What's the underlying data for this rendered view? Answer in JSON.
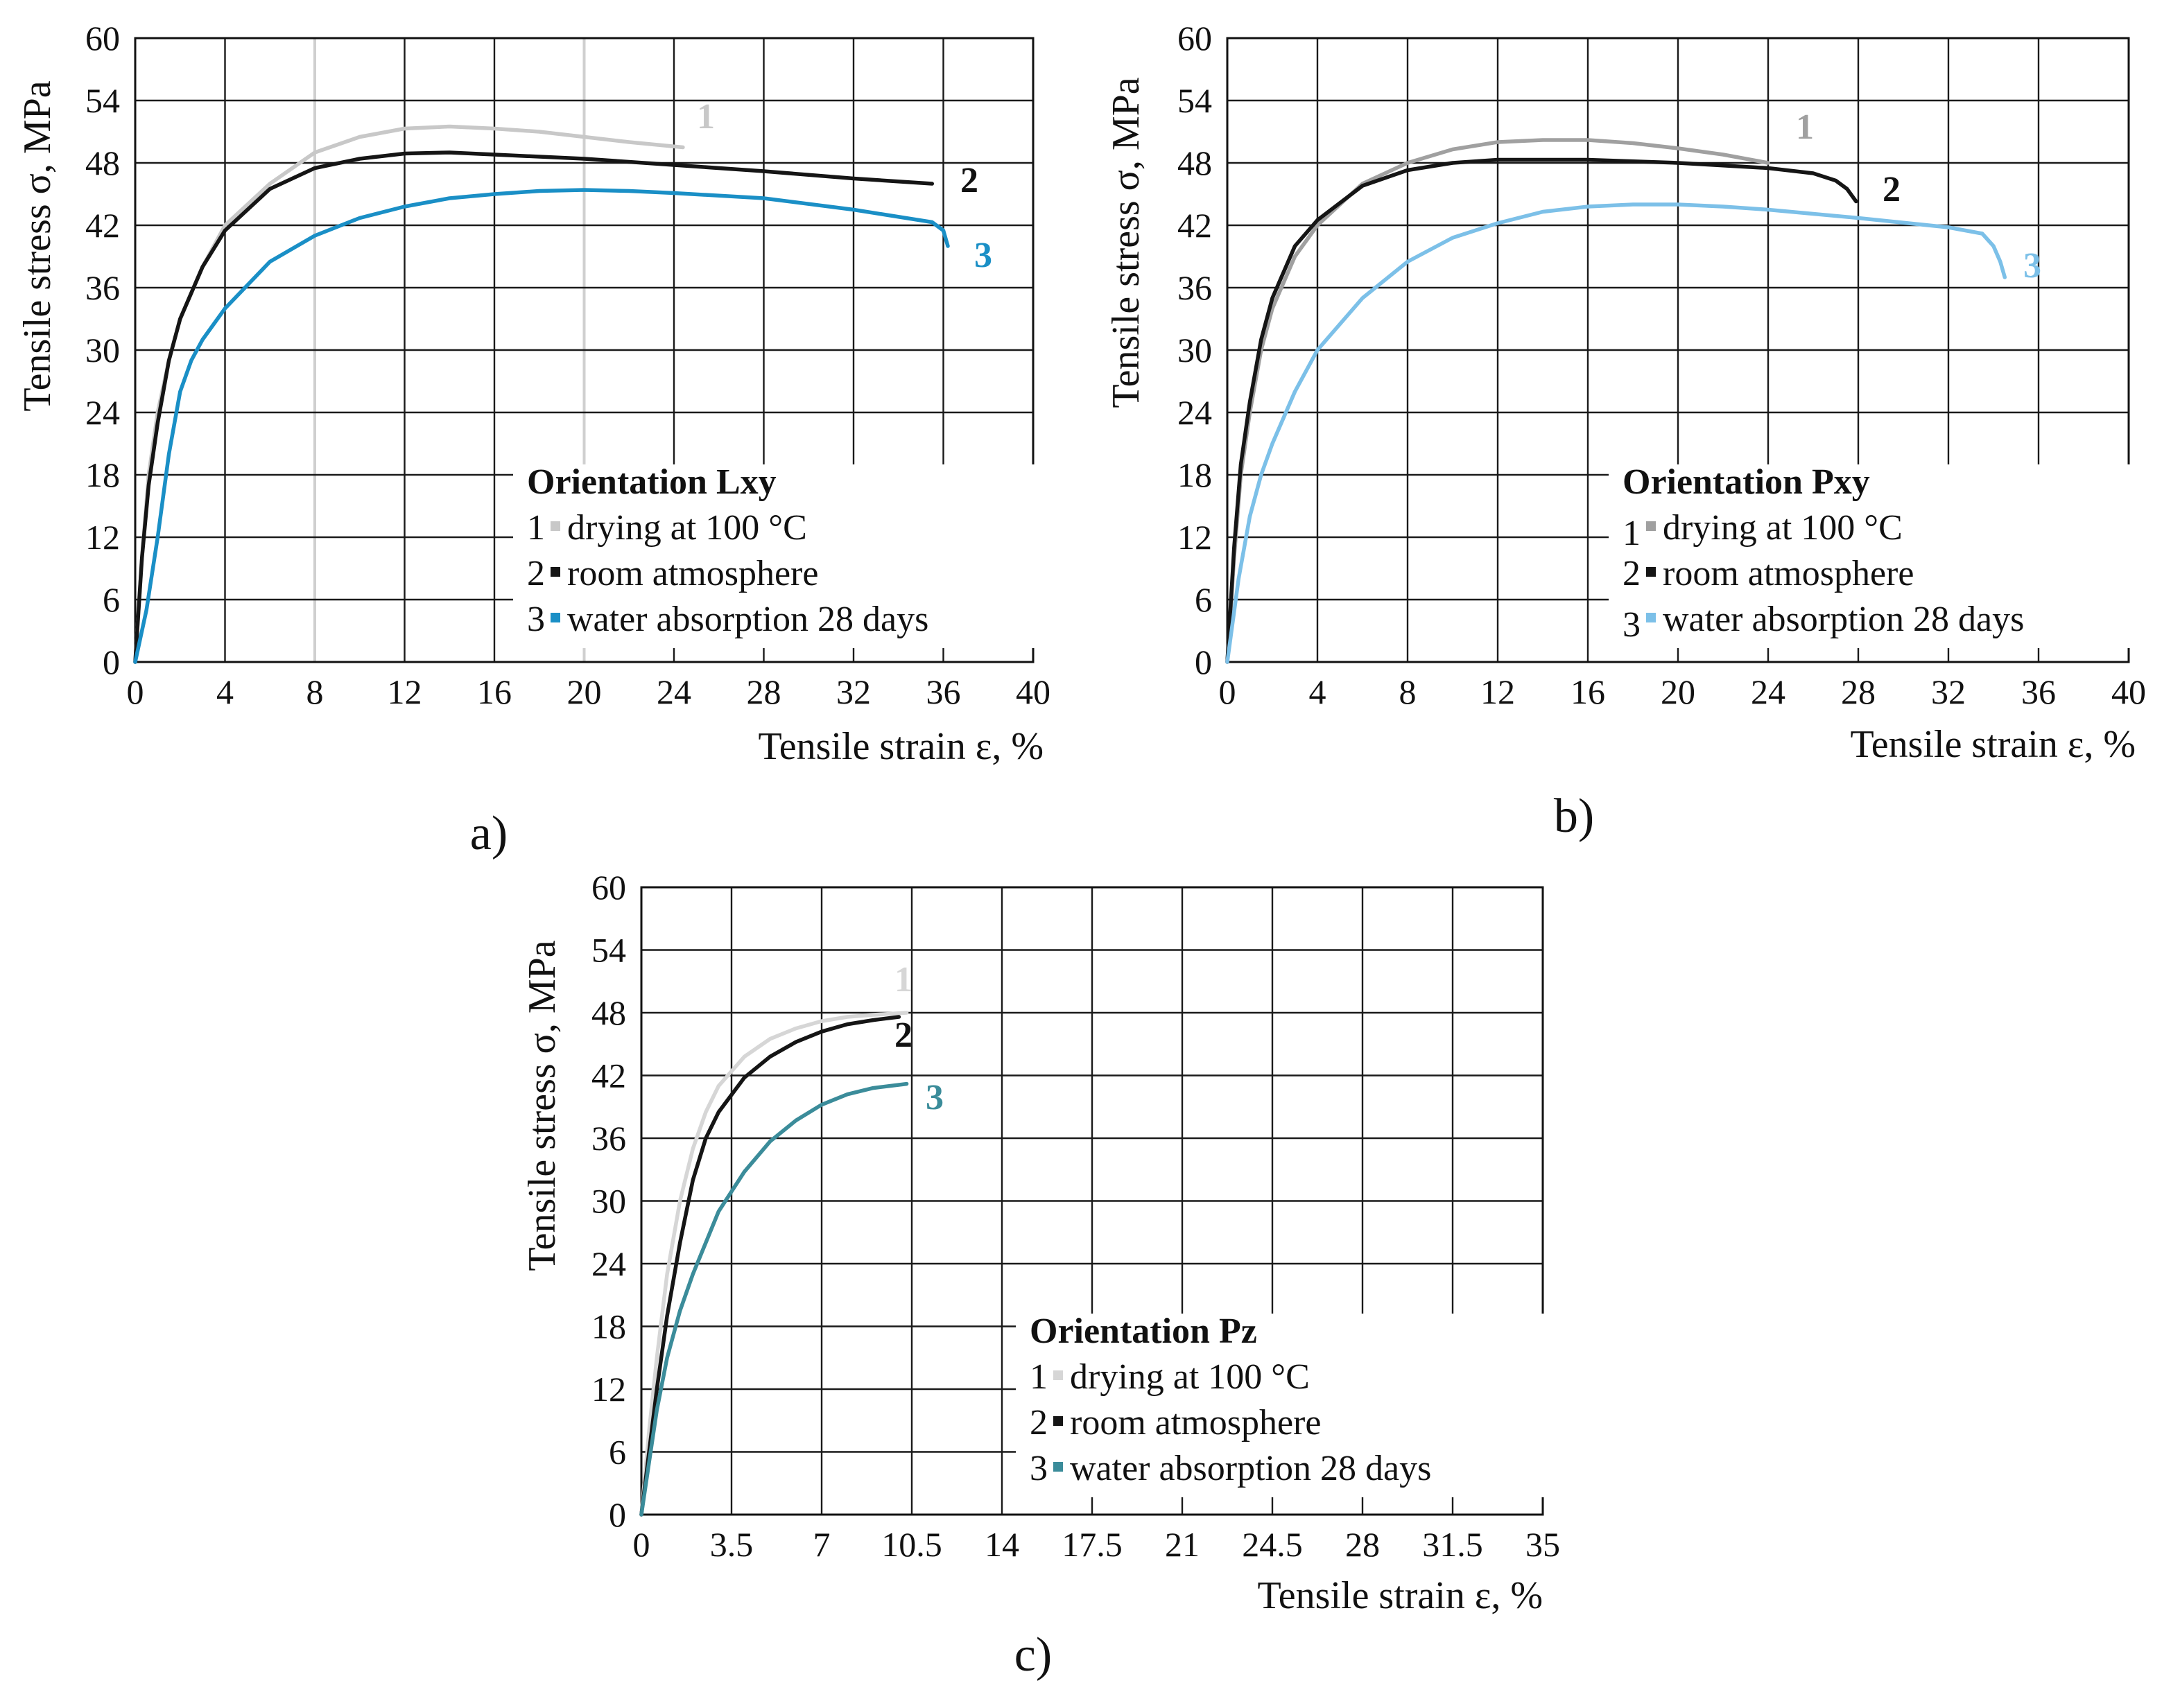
{
  "figure": {
    "panel_labels": [
      "a)",
      "b)",
      "c)"
    ]
  },
  "chart_data": [
    {
      "panel": "a)",
      "type": "line",
      "ylabel": "Tensile stress σ, MPa",
      "xlabel": "Tensile strain ε, %",
      "xlim": [
        0,
        40
      ],
      "ylim": [
        0,
        60
      ],
      "x_ticks": [
        "0",
        "4",
        "8",
        "12",
        "16",
        "20",
        "24",
        "28",
        "32",
        "36",
        "40"
      ],
      "y_ticks": [
        "0",
        "6",
        "12",
        "18",
        "24",
        "30",
        "36",
        "42",
        "48",
        "54",
        "60"
      ],
      "legend_title": "Orientation Lxy",
      "series": [
        {
          "id": "1",
          "name": "drying at 100 °C",
          "color": "#c8c8c8",
          "x": [
            0,
            0.3,
            0.6,
            1,
            1.5,
            2,
            3,
            4,
            6,
            8,
            10,
            12,
            14,
            16,
            18,
            20,
            22,
            24.4
          ],
          "y": [
            0,
            10,
            18,
            24,
            29,
            33,
            38,
            42,
            46,
            49,
            50.5,
            51.3,
            51.5,
            51.3,
            51,
            50.5,
            50,
            49.5
          ]
        },
        {
          "id": "2",
          "name": "room atmosphere",
          "color": "#151515",
          "x": [
            0,
            0.3,
            0.6,
            1,
            1.5,
            2,
            3,
            4,
            6,
            8,
            10,
            12,
            14,
            16,
            20,
            24,
            28,
            32,
            35.5
          ],
          "y": [
            0,
            10,
            17,
            23,
            29,
            33,
            38,
            41.5,
            45.5,
            47.5,
            48.4,
            48.9,
            49,
            48.8,
            48.4,
            47.8,
            47.2,
            46.5,
            46
          ]
        },
        {
          "id": "3",
          "name": "water absorption 28 days",
          "color": "#1a8fc6",
          "x": [
            0,
            0.5,
            1,
            1.5,
            2,
            2.5,
            3,
            4,
            6,
            8,
            10,
            12,
            14,
            16,
            18,
            20,
            22,
            24,
            28,
            32,
            35.5,
            36,
            36.2
          ],
          "y": [
            0,
            5,
            12,
            20,
            26,
            29,
            31,
            34,
            38.5,
            41,
            42.7,
            43.8,
            44.6,
            45,
            45.3,
            45.4,
            45.3,
            45.1,
            44.6,
            43.5,
            42.3,
            41.5,
            40
          ]
        }
      ],
      "annotations": [
        "1",
        "2",
        "3"
      ]
    },
    {
      "panel": "b)",
      "type": "line",
      "ylabel": "Tensile stress σ, MPa",
      "xlabel": "Tensile strain ε, %",
      "xlim": [
        0,
        40
      ],
      "ylim": [
        0,
        60
      ],
      "x_ticks": [
        "0",
        "4",
        "8",
        "12",
        "16",
        "20",
        "24",
        "28",
        "32",
        "36",
        "40"
      ],
      "y_ticks": [
        "0",
        "6",
        "12",
        "18",
        "24",
        "30",
        "36",
        "42",
        "48",
        "54",
        "60"
      ],
      "legend_title": "Orientation Pxy",
      "series": [
        {
          "id": "1",
          "name": "drying at 100 °C",
          "color": "#a0a0a0",
          "x": [
            0,
            0.3,
            0.6,
            1,
            1.5,
            2,
            3,
            4,
            6,
            8,
            10,
            12,
            14,
            16,
            18,
            20,
            22,
            24
          ],
          "y": [
            0,
            10,
            18,
            24,
            30,
            34,
            39,
            42,
            46,
            48,
            49.3,
            50,
            50.2,
            50.2,
            49.9,
            49.4,
            48.8,
            48
          ]
        },
        {
          "id": "2",
          "name": "room atmosphere",
          "color": "#151515",
          "x": [
            0,
            0.3,
            0.6,
            1,
            1.5,
            2,
            3,
            4,
            6,
            8,
            10,
            12,
            16,
            20,
            24,
            26,
            27,
            27.5,
            27.9
          ],
          "y": [
            0,
            11,
            19,
            25,
            31,
            35,
            40,
            42.5,
            45.8,
            47.3,
            48,
            48.3,
            48.3,
            48,
            47.5,
            47,
            46.3,
            45.5,
            44.3
          ]
        },
        {
          "id": "3",
          "name": "water absorption 28 days",
          "color": "#7cc0e8",
          "x": [
            0,
            0.5,
            1,
            1.5,
            2,
            3,
            4,
            6,
            8,
            10,
            12,
            14,
            16,
            18,
            20,
            22,
            24,
            28,
            32,
            33.5,
            34,
            34.3,
            34.5
          ],
          "y": [
            0,
            8,
            14,
            18,
            21,
            26,
            30,
            35,
            38.5,
            40.8,
            42.2,
            43.3,
            43.8,
            44,
            44,
            43.8,
            43.5,
            42.7,
            41.8,
            41.2,
            40,
            38.5,
            37
          ]
        }
      ],
      "annotations": [
        "1",
        "2",
        "3"
      ]
    },
    {
      "panel": "c)",
      "type": "line",
      "ylabel": "Tensile stress σ, MPa",
      "xlabel": "Tensile strain ε, %",
      "xlim": [
        0,
        35
      ],
      "ylim": [
        0,
        60
      ],
      "x_ticks": [
        "0",
        "3.5",
        "7",
        "10.5",
        "14",
        "17.5",
        "21",
        "24.5",
        "28",
        "31.5",
        "35"
      ],
      "y_ticks": [
        "0",
        "6",
        "12",
        "18",
        "24",
        "30",
        "36",
        "42",
        "48",
        "54",
        "60"
      ],
      "legend_title": "Orientation Pz",
      "series": [
        {
          "id": "1",
          "name": "drying at 100 °C",
          "color": "#d6d6d6",
          "x": [
            0,
            0.3,
            0.6,
            1,
            1.5,
            2,
            2.5,
            3,
            4,
            5,
            6,
            7,
            8,
            9,
            10.3
          ],
          "y": [
            0,
            8,
            15,
            23,
            30,
            35,
            38.5,
            41,
            43.8,
            45.5,
            46.5,
            47.2,
            47.6,
            47.8,
            48
          ]
        },
        {
          "id": "2",
          "name": "room atmosphere",
          "color": "#151515",
          "x": [
            0,
            0.3,
            0.6,
            1,
            1.5,
            2,
            2.5,
            3,
            4,
            5,
            6,
            7,
            8,
            9,
            10
          ],
          "y": [
            0,
            6,
            12,
            19,
            26,
            32,
            36,
            38.5,
            41.8,
            43.8,
            45.2,
            46.2,
            46.9,
            47.3,
            47.6
          ]
        },
        {
          "id": "3",
          "name": "water absorption 28 days",
          "color": "#3b8c9a",
          "x": [
            0,
            0.3,
            0.6,
            1,
            1.5,
            2,
            3,
            4,
            5,
            6,
            7,
            8,
            9,
            10.3
          ],
          "y": [
            0,
            5,
            10,
            15,
            19.5,
            23,
            29,
            32.8,
            35.7,
            37.7,
            39.2,
            40.2,
            40.8,
            41.2
          ]
        }
      ],
      "annotations": [
        "1",
        "2",
        "3"
      ]
    }
  ]
}
